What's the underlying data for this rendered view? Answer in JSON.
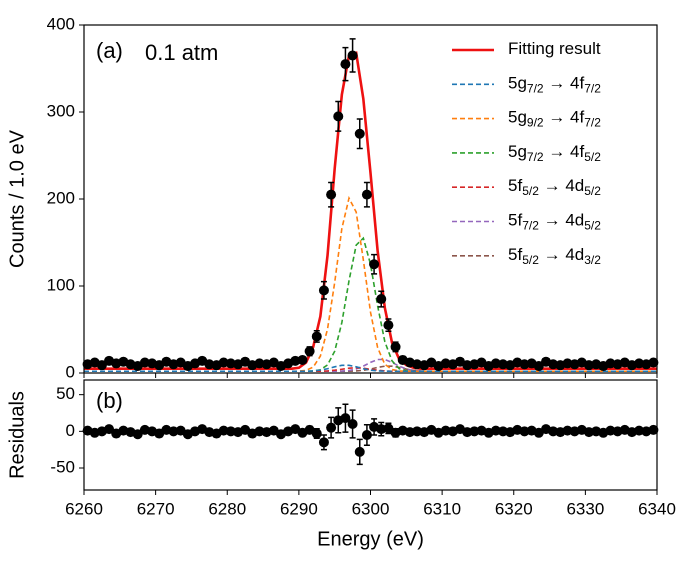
{
  "chart_data": [
    {
      "type": "scatter",
      "ylabel": "Counts / 1.0 eV",
      "annotations": [
        "(a)",
        "0.1 atm"
      ],
      "xlim": [
        6260,
        6340
      ],
      "xticks": [
        6260,
        6270,
        6280,
        6290,
        6300,
        6310,
        6320,
        6330,
        6340
      ],
      "ylim": [
        0,
        400
      ],
      "yticks": [
        0,
        100,
        200,
        300,
        400
      ],
      "legend": "upper right",
      "color": "#000000",
      "x": [
        6260.5,
        6261.5,
        6262.5,
        6263.5,
        6264.5,
        6265.5,
        6266.5,
        6267.5,
        6268.5,
        6269.5,
        6270.5,
        6271.5,
        6272.5,
        6273.5,
        6274.5,
        6275.5,
        6276.5,
        6277.5,
        6278.5,
        6279.5,
        6280.5,
        6281.5,
        6282.5,
        6283.5,
        6284.5,
        6285.5,
        6286.5,
        6287.5,
        6288.5,
        6289.5,
        6290.5,
        6291.5,
        6292.5,
        6293.5,
        6294.5,
        6295.5,
        6296.5,
        6297.5,
        6298.5,
        6299.5,
        6300.5,
        6301.5,
        6302.5,
        6303.5,
        6304.5,
        6305.5,
        6306.5,
        6307.5,
        6308.5,
        6309.5,
        6310.5,
        6311.5,
        6312.5,
        6313.5,
        6314.5,
        6315.5,
        6316.5,
        6317.5,
        6318.5,
        6319.5,
        6320.5,
        6321.5,
        6322.5,
        6323.5,
        6324.5,
        6325.5,
        6326.5,
        6327.5,
        6328.5,
        6329.5,
        6330.5,
        6331.5,
        6332.5,
        6333.5,
        6334.5,
        6335.5,
        6336.5,
        6337.5,
        6338.5,
        6339.5
      ],
      "values": [
        10,
        12,
        9,
        14,
        11,
        13,
        10,
        8,
        12,
        11,
        9,
        13,
        10,
        12,
        8,
        11,
        14,
        10,
        9,
        12,
        11,
        10,
        13,
        9,
        11,
        10,
        12,
        8,
        11,
        14,
        15,
        25,
        42,
        95,
        205,
        295,
        355,
        365,
        275,
        205,
        125,
        85,
        55,
        30,
        15,
        12,
        10,
        9,
        12,
        8,
        11,
        10,
        13,
        9,
        10,
        12,
        8,
        11,
        10,
        9,
        12,
        10,
        11,
        8,
        13,
        10,
        9,
        11,
        10,
        12,
        9,
        10,
        8,
        11,
        10,
        12,
        9,
        11,
        10,
        12
      ],
      "errors": [
        3,
        3,
        3,
        3,
        3,
        3,
        3,
        3,
        3,
        3,
        3,
        3,
        3,
        3,
        3,
        3,
        3,
        3,
        3,
        3,
        3,
        3,
        3,
        3,
        3,
        3,
        3,
        3,
        3,
        3,
        3,
        5,
        6.5,
        10,
        14,
        17,
        19,
        19,
        17,
        14,
        11,
        9,
        7,
        5.5,
        4,
        3.5,
        3,
        3,
        3,
        3,
        3,
        3,
        3,
        3,
        3,
        3,
        3,
        3,
        3,
        3,
        3,
        3,
        3,
        3,
        3,
        3,
        3,
        3,
        3,
        3,
        3,
        3,
        3,
        3,
        3,
        3,
        3,
        3,
        3,
        3
      ],
      "curve_x": [
        6260,
        6286,
        6287,
        6288,
        6289,
        6290,
        6291,
        6292,
        6293,
        6294,
        6295,
        6296,
        6297,
        6298,
        6299,
        6300,
        6301,
        6302,
        6303,
        6304,
        6305,
        6306,
        6307,
        6308,
        6309,
        6310,
        6340
      ],
      "series": [
        {
          "name": "Fitting result",
          "color": "#ee1111",
          "dashed": false,
          "values": [
            5,
            5,
            5,
            5,
            5,
            6,
            12,
            30,
            65,
            135,
            235,
            320,
            365,
            368,
            315,
            230,
            140,
            75,
            35,
            16,
            9,
            6,
            5,
            5,
            5,
            5,
            5
          ]
        },
        {
          "name": "5g7/2 → 4f7/2",
          "color": "#1f77b4",
          "dashed": true,
          "values": [
            2,
            2,
            2,
            2,
            2,
            2,
            2,
            2.4,
            3.3,
            4.9,
            7.1,
            8.8,
            8.8,
            7.1,
            4.9,
            3.3,
            2.4,
            2.1,
            2,
            2,
            2,
            2,
            2,
            2,
            2,
            2,
            2
          ]
        },
        {
          "name": "5g9/2 → 4f7/2",
          "color": "#ff7f0e",
          "dashed": true,
          "values": [
            2,
            2,
            2,
            2,
            2,
            2.2,
            3,
            6.8,
            19.4,
            50.4,
            104,
            166,
            201,
            185,
            130,
            70,
            29,
            10,
            4,
            2.3,
            2,
            2,
            2,
            2,
            2,
            2,
            2
          ]
        },
        {
          "name": "5g7/2 → 4f5/2",
          "color": "#2ca02c",
          "dashed": true,
          "values": [
            2,
            2,
            2,
            2,
            2,
            2,
            2,
            2.3,
            3.7,
            9.3,
            25,
            58,
            106,
            147,
            155,
            125,
            77,
            36,
            14,
            5,
            2.6,
            2,
            2,
            2,
            2,
            2,
            2
          ]
        },
        {
          "name": "5f5/2 → 4d5/2",
          "color": "#d62728",
          "dashed": true,
          "values": [
            2,
            2,
            2,
            2,
            2,
            2,
            2,
            2,
            2,
            2.4,
            3.2,
            4.3,
            5.5,
            6,
            5.5,
            4.3,
            3.2,
            2.4,
            2,
            2,
            2,
            2,
            2,
            2,
            2,
            2,
            2
          ]
        },
        {
          "name": "5f7/2 → 4d5/2",
          "color": "#9467bd",
          "dashed": true,
          "values": [
            2,
            2,
            2,
            2,
            2,
            2,
            2,
            2,
            2,
            2,
            2,
            2.2,
            2.8,
            4.6,
            7.9,
            12.2,
            15.5,
            15.5,
            12.2,
            7.9,
            4.6,
            2.8,
            2.2,
            2,
            2,
            2,
            2
          ]
        },
        {
          "name": "5f5/2 → 4d3/2",
          "color": "#8c564b",
          "dashed": true,
          "values": [
            2,
            2,
            2,
            2,
            2,
            2,
            2,
            2,
            2,
            2,
            2,
            2,
            2.1,
            2.4,
            3.1,
            4.5,
            6.4,
            7.8,
            7.8,
            6.4,
            4.5,
            3.1,
            2.4,
            2.1,
            2,
            2,
            2
          ]
        }
      ]
    },
    {
      "type": "scatter",
      "ylabel": "Residuals",
      "xlabel": "Energy (eV)",
      "annotations": [
        "(b)"
      ],
      "xlim": [
        6260,
        6340
      ],
      "xticks": [
        6260,
        6270,
        6280,
        6290,
        6300,
        6310,
        6320,
        6330,
        6340
      ],
      "ylim": [
        -80,
        70
      ],
      "yticks": [
        -50,
        0,
        50
      ],
      "color": "#000000",
      "x": [
        6260.5,
        6261.5,
        6262.5,
        6263.5,
        6264.5,
        6265.5,
        6266.5,
        6267.5,
        6268.5,
        6269.5,
        6270.5,
        6271.5,
        6272.5,
        6273.5,
        6274.5,
        6275.5,
        6276.5,
        6277.5,
        6278.5,
        6279.5,
        6280.5,
        6281.5,
        6282.5,
        6283.5,
        6284.5,
        6285.5,
        6286.5,
        6287.5,
        6288.5,
        6289.5,
        6290.5,
        6291.5,
        6292.5,
        6293.5,
        6294.5,
        6295.5,
        6296.5,
        6297.5,
        6298.5,
        6299.5,
        6300.5,
        6301.5,
        6302.5,
        6303.5,
        6304.5,
        6305.5,
        6306.5,
        6307.5,
        6308.5,
        6309.5,
        6310.5,
        6311.5,
        6312.5,
        6313.5,
        6314.5,
        6315.5,
        6316.5,
        6317.5,
        6318.5,
        6319.5,
        6320.5,
        6321.5,
        6322.5,
        6323.5,
        6324.5,
        6325.5,
        6326.5,
        6327.5,
        6328.5,
        6329.5,
        6330.5,
        6331.5,
        6332.5,
        6333.5,
        6334.5,
        6335.5,
        6336.5,
        6337.5,
        6338.5,
        6339.5
      ],
      "values": [
        1,
        -2,
        0,
        3,
        -3,
        1,
        -1,
        -4,
        2,
        0,
        -3,
        2,
        0,
        1,
        -4,
        0,
        3,
        -1,
        -3,
        1,
        0,
        -1,
        2,
        -3,
        0,
        -1,
        1,
        -4,
        0,
        3,
        -2,
        2,
        -3,
        -15,
        5,
        15,
        18,
        10,
        -28,
        -5,
        6,
        3,
        4,
        -2,
        1,
        -1,
        0,
        -1,
        2,
        -2,
        1,
        0,
        3,
        -1,
        0,
        1,
        -2,
        1,
        0,
        -1,
        2,
        0,
        1,
        -2,
        3,
        0,
        -1,
        1,
        0,
        2,
        -1,
        0,
        -2,
        1,
        0,
        2,
        -1,
        1,
        0,
        2
      ],
      "errors": [
        3,
        3,
        3,
        3,
        3,
        3,
        3,
        3,
        3,
        3,
        3,
        3,
        3,
        3,
        3,
        3,
        3,
        3,
        3,
        3,
        3,
        3,
        3,
        3,
        3,
        3,
        3,
        3,
        3,
        3,
        3,
        5,
        6.5,
        10,
        14,
        17,
        19,
        19,
        17,
        14,
        11,
        9,
        7,
        5.5,
        4,
        3.5,
        3,
        3,
        3,
        3,
        3,
        3,
        3,
        3,
        3,
        3,
        3,
        3,
        3,
        3,
        3,
        3,
        3,
        3,
        3,
        3,
        3,
        3,
        3,
        3,
        3,
        3,
        3,
        3,
        3,
        3,
        3,
        3,
        3,
        3
      ]
    }
  ]
}
